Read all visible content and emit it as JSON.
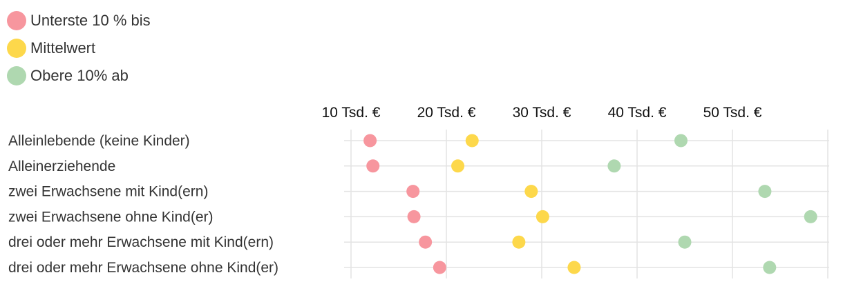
{
  "chart_data": {
    "type": "scatter",
    "title": "",
    "xlabel": "",
    "ylabel": "",
    "x_ticks": [
      10,
      20,
      30,
      40,
      50
    ],
    "x_tick_labels": [
      "10 Tsd. €",
      "20 Tsd. €",
      "30 Tsd. €",
      "40 Tsd. €",
      "50 Tsd. €"
    ],
    "xlim": [
      10,
      60
    ],
    "axis_position": "top",
    "grid": true,
    "legend_position": "top-left",
    "categories": [
      "Alleinlebende (keine Kinder)",
      "Alleinerziehende",
      "zwei Erwachsene mit Kind(ern)",
      "zwei Erwachsene ohne Kind(er)",
      "drei oder mehr Erwachsene mit Kind(ern)",
      "drei oder mehr Erwachsene ohne Kind(er)"
    ],
    "series": [
      {
        "name": "Unterste 10 % bis",
        "color": "#f7969e",
        "values": [
          12.0,
          12.3,
          16.5,
          16.6,
          17.8,
          19.3
        ]
      },
      {
        "name": "Mittelwert",
        "color": "#fdd84b",
        "values": [
          22.7,
          21.2,
          28.9,
          30.1,
          27.6,
          33.4
        ]
      },
      {
        "name": "Obere 10% ab",
        "color": "#afd8b0",
        "values": [
          44.6,
          37.6,
          53.4,
          58.2,
          45.0,
          53.9
        ]
      }
    ]
  }
}
